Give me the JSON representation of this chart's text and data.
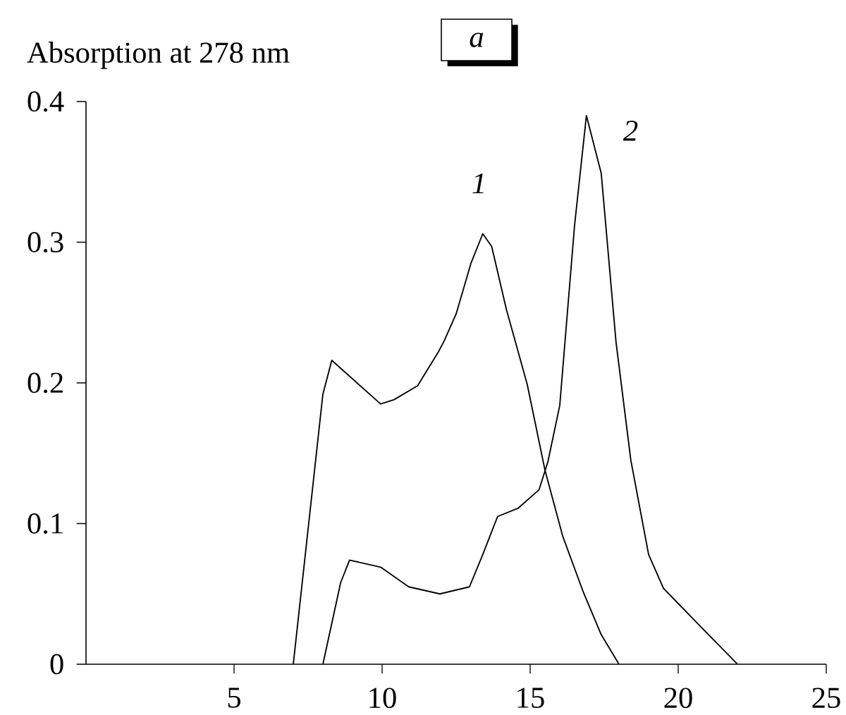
{
  "chart_data": {
    "type": "line",
    "title": "a",
    "ylabel": "Absorption at 278 nm",
    "xlim": [
      0,
      25
    ],
    "xticks": [
      5,
      10,
      15,
      20,
      25
    ],
    "ylim": [
      0,
      0.4
    ],
    "yticks": [
      0,
      0.1,
      0.2,
      0.3,
      0.4
    ],
    "grid": false,
    "legend": false,
    "marker": "none",
    "line_style": "solid",
    "series": [
      {
        "name": "1",
        "color": "#000000",
        "x": [
          7,
          8.0,
          8.3,
          9.95,
          10.4,
          11.2,
          11.9,
          12.1,
          12.5,
          13.0,
          13.4,
          13.7,
          14.2,
          14.9,
          15.5,
          16.1,
          16.8,
          17.4,
          18
        ],
        "values": [
          0,
          0.192,
          0.216,
          0.185,
          0.188,
          0.198,
          0.222,
          0.23,
          0.249,
          0.285,
          0.306,
          0.297,
          0.252,
          0.199,
          0.138,
          0.091,
          0.051,
          0.021,
          0
        ]
      },
      {
        "name": "2",
        "color": "#000000",
        "x": [
          8,
          8.6,
          8.9,
          9.95,
          10.9,
          11.95,
          12.95,
          13.4,
          13.9,
          14.6,
          15.3,
          15.6,
          16.0,
          16.5,
          16.9,
          17.4,
          17.9,
          18.4,
          19.0,
          19.5,
          20.7,
          22
        ],
        "values": [
          0,
          0.058,
          0.074,
          0.069,
          0.055,
          0.05,
          0.055,
          0.078,
          0.105,
          0.111,
          0.124,
          0.144,
          0.184,
          0.312,
          0.39,
          0.349,
          0.229,
          0.145,
          0.078,
          0.054,
          0.028,
          0
        ]
      }
    ]
  }
}
